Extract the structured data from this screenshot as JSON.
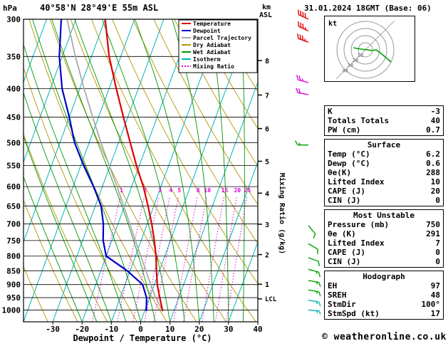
{
  "header": {
    "pressure_unit": "hPa",
    "station": "40°58'N 28°49'E 55m ASL",
    "datetime": "31.01.2024 18GMT (Base: 06)",
    "km_label": "km",
    "asl_label": "ASL"
  },
  "axes": {
    "pressure_ticks": [
      300,
      350,
      400,
      450,
      500,
      550,
      600,
      650,
      700,
      750,
      800,
      850,
      900,
      950,
      1000
    ],
    "temp_ticks_c": [
      -30,
      -20,
      -10,
      0,
      10,
      20,
      30,
      40
    ],
    "km_ticks": [
      1,
      2,
      3,
      4,
      5,
      6,
      7,
      8
    ],
    "lcl_label": "LCL",
    "x_axis_title": "Dewpoint / Temperature (°C)",
    "right_axis_title": "Mixing Ratio (g/kg)"
  },
  "legend": [
    {
      "label": "Temperature",
      "color_key": "temperature",
      "dash": false
    },
    {
      "label": "Dewpoint",
      "color_key": "dewpoint",
      "dash": false
    },
    {
      "label": "Parcel Trajectory",
      "color_key": "parcel",
      "dash": false
    },
    {
      "label": "Dry Adiabat",
      "color_key": "dry_adiabat",
      "dash": false
    },
    {
      "label": "Wet Adiabat",
      "color_key": "wet_adiabat",
      "dash": false
    },
    {
      "label": "Isotherm",
      "color_key": "isotherm",
      "dash": false
    },
    {
      "label": "Mixing Ratio",
      "color_key": "mixing_ratio",
      "dash": true
    }
  ],
  "chart_data": {
    "type": "line",
    "variant": "skew-t log-p sounding",
    "title": "40°58'N 28°49'E 55m ASL",
    "datetime": "31.01.2024 18GMT (Base: 06)",
    "pressure_range_hpa": [
      1050,
      300
    ],
    "temp_range_c": [
      -40,
      40
    ],
    "pressure_hpa": [
      1005,
      950,
      900,
      850,
      800,
      750,
      700,
      650,
      600,
      550,
      500,
      450,
      400,
      350,
      300
    ],
    "series": [
      {
        "name": "Temperature",
        "color_key": "temperature",
        "values_c": [
          6.2,
          3.5,
          1,
          -1,
          -3,
          -5.5,
          -8.5,
          -12,
          -16,
          -21,
          -26,
          -31.5,
          -37.5,
          -44,
          -50
        ]
      },
      {
        "name": "Dewpoint",
        "color_key": "dewpoint",
        "values_c": [
          0.6,
          -1,
          -4,
          -11,
          -20,
          -23,
          -25,
          -28,
          -33,
          -39,
          -45,
          -50,
          -56,
          -61,
          -65
        ]
      },
      {
        "name": "Parcel Trajectory",
        "color_key": "parcel",
        "values_c": [
          6.2,
          2.1,
          -1.2,
          -4.6,
          -8.2,
          -12,
          -16,
          -20.3,
          -25,
          -30.3,
          -36,
          -42,
          -48.5,
          -55.5,
          -63
        ]
      }
    ],
    "mixing_ratio_lines_g_kg": [
      1,
      2,
      3,
      4,
      5,
      8,
      10,
      15,
      20,
      25
    ],
    "lcl_pressure_hpa": 955,
    "background": {
      "isotherm_step_c": 10,
      "isobar_step_hpa": 50,
      "dry_adiabat_step_c": 10,
      "wet_adiabat_step_c": 5
    },
    "wind_barbs": [
      {
        "p": 300,
        "kt": 40,
        "dir": 295,
        "color": "barb_red"
      },
      {
        "p": 315,
        "kt": 35,
        "dir": 295,
        "color": "barb_red"
      },
      {
        "p": 330,
        "kt": 35,
        "dir": 290,
        "color": "barb_red"
      },
      {
        "p": 390,
        "kt": 25,
        "dir": 285,
        "color": "barb_magenta"
      },
      {
        "p": 410,
        "kt": 20,
        "dir": 280,
        "color": "barb_magenta"
      },
      {
        "p": 505,
        "kt": 15,
        "dir": 270,
        "color": "barb_green"
      },
      {
        "p": 705,
        "kt": 10,
        "dir": 140,
        "color": "barb_green"
      },
      {
        "p": 760,
        "kt": 10,
        "dir": 120,
        "color": "barb_green"
      },
      {
        "p": 805,
        "kt": 12,
        "dir": 110,
        "color": "barb_green"
      },
      {
        "p": 845,
        "kt": 15,
        "dir": 105,
        "color": "barb_green"
      },
      {
        "p": 885,
        "kt": 15,
        "dir": 100,
        "color": "barb_green"
      },
      {
        "p": 920,
        "kt": 17,
        "dir": 100,
        "color": "barb_green"
      },
      {
        "p": 960,
        "kt": 17,
        "dir": 100,
        "color": "barb_cyan"
      },
      {
        "p": 1000,
        "kt": 15,
        "dir": 95,
        "color": "barb_cyan"
      }
    ]
  },
  "hodograph": {
    "unit": "kt",
    "ring_step_kt": 10,
    "rings_kt": [
      10,
      20,
      30,
      40
    ],
    "trace_uv_kt": [
      [
        -16.7,
        3
      ],
      [
        -12,
        2
      ],
      [
        -6,
        1
      ],
      [
        3,
        0
      ],
      [
        9,
        -1
      ],
      [
        15,
        0
      ],
      [
        22,
        -5
      ],
      [
        29,
        -11
      ],
      [
        36,
        -17
      ]
    ]
  },
  "tables": [
    {
      "title": "",
      "rows": [
        {
          "label": "K",
          "value": "-3"
        },
        {
          "label": "Totals Totals",
          "value": "40"
        },
        {
          "label": "PW (cm)",
          "value": "0.7"
        }
      ]
    },
    {
      "title": "Surface",
      "rows": [
        {
          "label": "Temp (°C)",
          "value": "6.2"
        },
        {
          "label": "Dewp (°C)",
          "value": "0.6"
        },
        {
          "label": "θe(K)",
          "value": "288"
        },
        {
          "label": "Lifted Index",
          "value": "10"
        },
        {
          "label": "CAPE (J)",
          "value": "20"
        },
        {
          "label": "CIN (J)",
          "value": "0"
        }
      ]
    },
    {
      "title": "Most Unstable",
      "rows": [
        {
          "label": "Pressure (mb)",
          "value": "750"
        },
        {
          "label": "θe (K)",
          "value": "291"
        },
        {
          "label": "Lifted Index",
          "value": "7"
        },
        {
          "label": "CAPE (J)",
          "value": "0"
        },
        {
          "label": "CIN (J)",
          "value": "0"
        }
      ]
    },
    {
      "title": "Hodograph",
      "rows": [
        {
          "label": "EH",
          "value": "97"
        },
        {
          "label": "SREH",
          "value": "48"
        },
        {
          "label": "StmDir",
          "value": "100°"
        },
        {
          "label": "StmSpd (kt)",
          "value": "17"
        }
      ]
    }
  ],
  "footer": {
    "copyright": "© weatheronline.co.uk"
  },
  "colors": {
    "temperature": "#dd0000",
    "dewpoint": "#0000cc",
    "parcel": "#a9a9a9",
    "dry_adiabat": "#b49600",
    "wet_adiabat": "#009600",
    "isotherm": "#00b4b4",
    "mixing_ratio": "#dd00dd",
    "isobar": "#000000",
    "barb_red": "#dd0000",
    "barb_magenta": "#dd00dd",
    "barb_green": "#00a000",
    "barb_cyan": "#00b4b4"
  }
}
